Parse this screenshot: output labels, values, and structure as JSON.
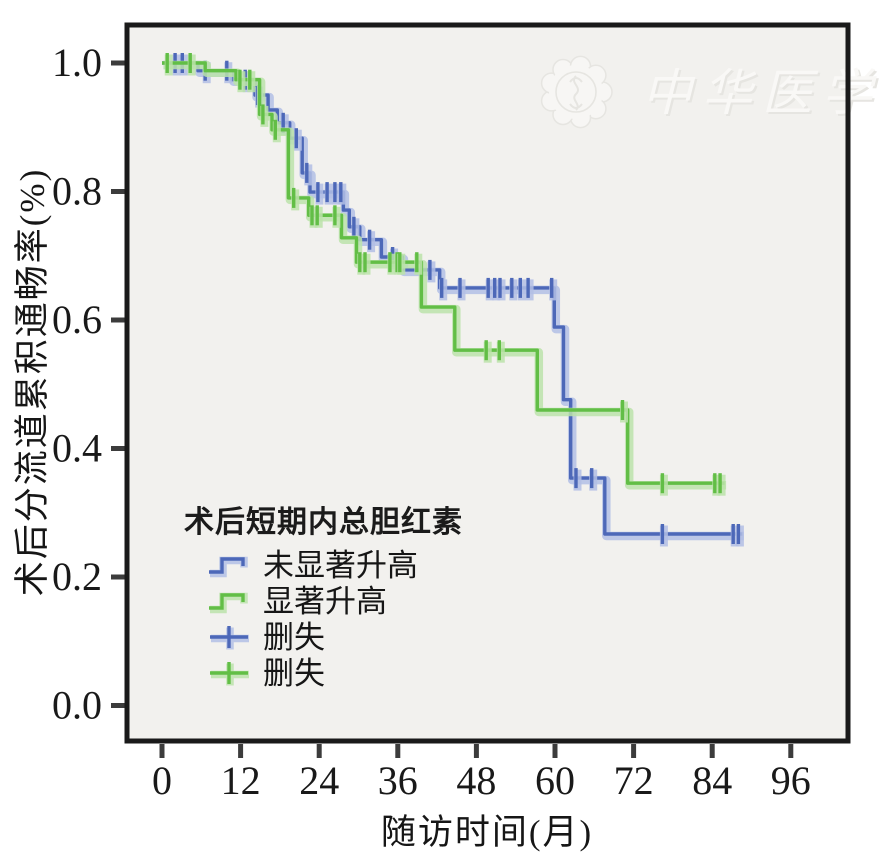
{
  "figure": {
    "watermark": {
      "text": "中华医学会"
    },
    "x_axis_title": "随访时间(月)",
    "y_axis_title": "术后分流道累积通畅率(%)",
    "x_tick_labels": [
      "0",
      "12",
      "24",
      "36",
      "48",
      "60",
      "72",
      "84",
      "96"
    ],
    "y_tick_labels": [
      "0.0",
      "0.2",
      "0.4",
      "0.6",
      "0.8",
      "1.0"
    ]
  },
  "colors": {
    "blue_line": "#4d68b8",
    "blue_halo": "#b3bfe5",
    "green_line": "#62be46",
    "green_halo": "#bce3aa",
    "plot_background": "#f2f1ee",
    "border": "#1a1a1a",
    "tick": "#3c3c3c",
    "text": "#191919",
    "watermark": "#e6e5e1"
  },
  "chart_data": {
    "type": "line",
    "variant": "kaplan_meier_step",
    "title": "",
    "xlabel": "随访时间(月)",
    "ylabel": "术后分流道累积通畅率(%)",
    "x_ticks": [
      0,
      12,
      24,
      36,
      48,
      60,
      72,
      84,
      96
    ],
    "y_ticks": [
      0.0,
      0.2,
      0.4,
      0.6,
      0.8,
      1.0
    ],
    "xlim": [
      0,
      104
    ],
    "ylim": [
      0,
      1.06
    ],
    "grid": false,
    "legend_position": "inside-lower-left",
    "legend": {
      "title": "术后短期内总胆红素",
      "items": [
        {
          "label": "未显著升高",
          "marker": "step",
          "color": "#4d68b8",
          "halo_color": "#b3bfe5"
        },
        {
          "label": "显著升高",
          "marker": "step",
          "color": "#62be46",
          "halo_color": "#bce3aa"
        },
        {
          "label": "删失",
          "marker": "cross",
          "color": "#4d68b8",
          "halo_color": "#b3bfe5"
        },
        {
          "label": "删失",
          "marker": "cross",
          "color": "#62be46",
          "halo_color": "#bce3aa"
        }
      ]
    },
    "series": [
      {
        "name": "未显著升高",
        "color": "#4d68b8",
        "halo_color": "#b3bfe5",
        "end_time": 88.6,
        "steps": [
          [
            0,
            1.0
          ],
          [
            5.5,
            0.988
          ],
          [
            10.7,
            0.974
          ],
          [
            14.2,
            0.95
          ],
          [
            16.2,
            0.927
          ],
          [
            17.6,
            0.907
          ],
          [
            19.5,
            0.883
          ],
          [
            21.4,
            0.829
          ],
          [
            22.6,
            0.799
          ],
          [
            27.7,
            0.771
          ],
          [
            28.6,
            0.745
          ],
          [
            30.2,
            0.725
          ],
          [
            33.5,
            0.698
          ],
          [
            36.7,
            0.678
          ],
          [
            42.4,
            0.65
          ],
          [
            59.9,
            0.589
          ],
          [
            61.3,
            0.476
          ],
          [
            62.4,
            0.354
          ],
          [
            67.6,
            0.267
          ]
        ],
        "censors": [
          [
            2.0,
            1.0
          ],
          [
            3.1,
            1.0
          ],
          [
            6.6,
            0.988
          ],
          [
            9.9,
            0.988
          ],
          [
            12.7,
            0.974
          ],
          [
            14.6,
            0.95
          ],
          [
            18.5,
            0.907
          ],
          [
            20.5,
            0.883
          ],
          [
            22.1,
            0.829
          ],
          [
            23.8,
            0.799
          ],
          [
            25.2,
            0.799
          ],
          [
            26.4,
            0.799
          ],
          [
            27.3,
            0.799
          ],
          [
            29.3,
            0.745
          ],
          [
            31.7,
            0.725
          ],
          [
            35.2,
            0.698
          ],
          [
            40.9,
            0.678
          ],
          [
            42.7,
            0.65
          ],
          [
            45.5,
            0.65
          ],
          [
            49.8,
            0.65
          ],
          [
            50.8,
            0.65
          ],
          [
            51.6,
            0.65
          ],
          [
            53.4,
            0.65
          ],
          [
            54.7,
            0.65
          ],
          [
            55.9,
            0.65
          ],
          [
            59.5,
            0.65
          ],
          [
            63.2,
            0.354
          ],
          [
            65.6,
            0.354
          ],
          [
            76.4,
            0.267
          ],
          [
            87.2,
            0.267
          ],
          [
            88.0,
            0.267
          ]
        ]
      },
      {
        "name": "显著升高",
        "color": "#62be46",
        "halo_color": "#bce3aa",
        "end_time": 85.9,
        "steps": [
          [
            0,
            1.0
          ],
          [
            6.6,
            0.988
          ],
          [
            11.3,
            0.974
          ],
          [
            14.9,
            0.92
          ],
          [
            16.8,
            0.896
          ],
          [
            19.3,
            0.79
          ],
          [
            22.4,
            0.763
          ],
          [
            27.4,
            0.728
          ],
          [
            29.7,
            0.69
          ],
          [
            39.6,
            0.62
          ],
          [
            44.7,
            0.553
          ],
          [
            57.3,
            0.46
          ],
          [
            71.1,
            0.346
          ]
        ],
        "censors": [
          [
            0.8,
            1.0
          ],
          [
            4.3,
            1.0
          ],
          [
            11.9,
            0.974
          ],
          [
            13.4,
            0.974
          ],
          [
            15.4,
            0.92
          ],
          [
            17.3,
            0.896
          ],
          [
            20.1,
            0.79
          ],
          [
            22.9,
            0.763
          ],
          [
            23.7,
            0.763
          ],
          [
            26.4,
            0.763
          ],
          [
            30.2,
            0.69
          ],
          [
            31.0,
            0.69
          ],
          [
            34.8,
            0.69
          ],
          [
            35.9,
            0.69
          ],
          [
            36.3,
            0.69
          ],
          [
            38.9,
            0.69
          ],
          [
            49.5,
            0.553
          ],
          [
            51.5,
            0.553
          ],
          [
            70.3,
            0.46
          ],
          [
            76.4,
            0.346
          ],
          [
            84.4,
            0.346
          ],
          [
            85.2,
            0.346
          ]
        ]
      }
    ]
  }
}
